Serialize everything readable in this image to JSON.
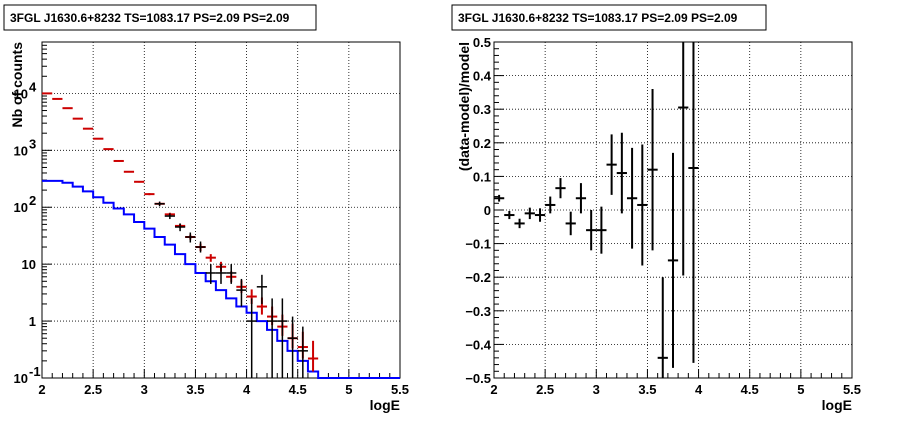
{
  "chart_data": [
    {
      "type": "line",
      "title": "3FGL J1630.6+8232 TS=1083.17 PS=2.09 PS=2.09",
      "xlabel": "logE",
      "ylabel": "Nb of counts",
      "xlim": [
        2,
        5.5
      ],
      "ylim": [
        0.1,
        80000
      ],
      "yscale": "log",
      "grid": true,
      "x_ticks": [
        "2",
        "2.5",
        "3",
        "3.5",
        "4",
        "4.5",
        "5",
        "5.5"
      ],
      "y_ticks": [
        {
          "value": 0.1,
          "base": "10",
          "exp": "-1"
        },
        {
          "value": 1,
          "base": "1",
          "exp": ""
        },
        {
          "value": 10,
          "base": "10",
          "exp": ""
        },
        {
          "value": 100,
          "base": "10",
          "exp": "2"
        },
        {
          "value": 1000,
          "base": "10",
          "exp": "3"
        },
        {
          "value": 10000,
          "base": "10",
          "exp": "4"
        }
      ],
      "series": [
        {
          "role": "model_histogram",
          "color": "#0000ff",
          "bin_width": 0.1,
          "x_left": [
            2.0,
            2.1,
            2.2,
            2.3,
            2.4,
            2.5,
            2.6,
            2.7,
            2.8,
            2.9,
            3.0,
            3.1,
            3.2,
            3.3,
            3.4,
            3.5,
            3.6,
            3.7,
            3.8,
            3.9,
            4.0,
            4.1,
            4.2,
            4.3,
            4.4,
            4.5,
            4.6,
            4.7,
            4.8,
            4.9,
            5.0,
            5.1,
            5.2,
            5.3,
            5.4
          ],
          "y": [
            290,
            290,
            270,
            230,
            190,
            150,
            120,
            95,
            75,
            55,
            42,
            30,
            22,
            15,
            10,
            7,
            5,
            3.5,
            2.5,
            1.8,
            1.4,
            1.0,
            0.7,
            0.45,
            0.3,
            0.2,
            0.13,
            0.1,
            0.1,
            0.1,
            0.1,
            0.1,
            0.1,
            0.1,
            0.1
          ]
        },
        {
          "role": "total_model_with_errors",
          "color": "#cc0000",
          "x": [
            2.05,
            2.15,
            2.25,
            2.35,
            2.45,
            2.55,
            2.65,
            2.75,
            2.85,
            2.95,
            3.05,
            3.15,
            3.25,
            3.35,
            3.45,
            3.55,
            3.65,
            3.75,
            3.85,
            3.95,
            4.05,
            4.15,
            4.25,
            4.35,
            4.45,
            4.55,
            4.65
          ],
          "y": [
            10000,
            8000,
            5500,
            3600,
            2400,
            1600,
            1050,
            650,
            420,
            280,
            170,
            115,
            75,
            47,
            30,
            20,
            13,
            9,
            6,
            4,
            2.7,
            1.8,
            1.2,
            0.8,
            0.5,
            0.35,
            0.22
          ],
          "err_low": [
            9800,
            7850,
            5400,
            3540,
            2355,
            1570,
            1025,
            635,
            408,
            271,
            163,
            109,
            70,
            43,
            27,
            17,
            11,
            7.4,
            4.8,
            3.1,
            2.0,
            1.3,
            0.85,
            0.55,
            0.33,
            0.22,
            0.13
          ],
          "err_high": [
            10200,
            8150,
            5600,
            3660,
            2445,
            1630,
            1075,
            665,
            432,
            289,
            177,
            121,
            80,
            51,
            33,
            23,
            15,
            11,
            7.5,
            5.2,
            3.6,
            2.6,
            1.8,
            1.3,
            0.9,
            0.65,
            0.45
          ]
        },
        {
          "role": "data_points",
          "color": "#000000",
          "x": [
            3.15,
            3.25,
            3.35,
            3.45,
            3.55,
            3.65,
            3.75,
            3.85,
            3.95,
            4.05,
            4.15,
            4.25,
            4.35,
            4.45,
            4.55
          ],
          "y": [
            115,
            70,
            45,
            30,
            20,
            7,
            7,
            7,
            3.5,
            1,
            4,
            1,
            1,
            0.5,
            0.3
          ],
          "err_low": [
            104,
            62,
            38,
            24,
            16,
            4.5,
            4.5,
            4.5,
            1.8,
            0.1,
            2,
            0.1,
            0.1,
            0.1,
            0.1
          ],
          "err_high": [
            126,
            78,
            52,
            36,
            25,
            10,
            10,
            10,
            5.5,
            2.5,
            6.5,
            2.5,
            2.5,
            1.2,
            0.8
          ]
        }
      ]
    },
    {
      "type": "scatter",
      "title": "3FGL J1630.6+8232 TS=1083.17 PS=2.09 PS=2.09",
      "xlabel": "logE",
      "ylabel": "(data-model)/model",
      "xlim": [
        2,
        5.5
      ],
      "ylim": [
        -0.5,
        0.5
      ],
      "grid": true,
      "x_ticks": [
        "2",
        "2.5",
        "3",
        "3.5",
        "4",
        "4.5",
        "5",
        "5.5"
      ],
      "y_ticks": [
        "−0.5",
        "−0.4",
        "−0.3",
        "−0.2",
        "−0.1",
        "0",
        "0.1",
        "0.2",
        "0.3",
        "0.4",
        "0.5"
      ],
      "y_tick_values": [
        -0.5,
        -0.4,
        -0.3,
        -0.2,
        -0.1,
        0,
        0.1,
        0.2,
        0.3,
        0.4,
        0.5
      ],
      "series": [
        {
          "role": "residuals",
          "color": "#000000",
          "x": [
            2.05,
            2.15,
            2.25,
            2.35,
            2.45,
            2.55,
            2.65,
            2.75,
            2.85,
            2.95,
            3.05,
            3.15,
            3.25,
            3.35,
            3.45,
            3.55,
            3.65,
            3.75,
            3.85,
            3.95
          ],
          "y": [
            0.035,
            -0.015,
            -0.04,
            -0.01,
            -0.015,
            0.015,
            0.065,
            -0.04,
            0.035,
            -0.06,
            -0.06,
            0.135,
            0.11,
            0.035,
            0.015,
            0.12,
            -0.44,
            -0.15,
            0.305,
            0.125
          ],
          "err": [
            0.01,
            0.012,
            0.014,
            0.017,
            0.02,
            0.025,
            0.03,
            0.035,
            0.045,
            0.06,
            0.07,
            0.09,
            0.12,
            0.15,
            0.18,
            0.24,
            0.24,
            0.32,
            0.5,
            0.58
          ]
        }
      ]
    }
  ]
}
